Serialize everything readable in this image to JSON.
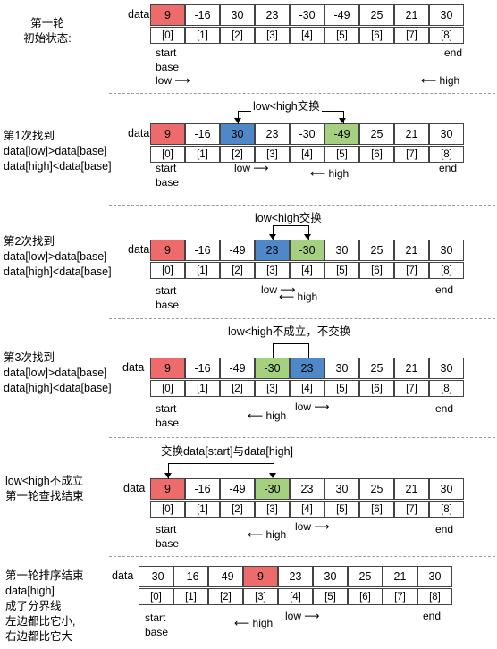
{
  "steps": [
    {
      "side": [
        "第一轮",
        "初始状态:"
      ],
      "data_label": "data",
      "values": [
        "9",
        "-16",
        "30",
        "23",
        "-30",
        "-49",
        "25",
        "21",
        "30"
      ],
      "colors": [
        "red",
        "",
        "",
        "",
        "",
        "",
        "",
        "",
        ""
      ],
      "indices": [
        "[0]",
        "[1]",
        "[2]",
        "[3]",
        "[4]",
        "[5]",
        "[6]",
        "[7]",
        "[8]"
      ],
      "swap_text": "",
      "notes": [
        "start",
        "base",
        "low",
        "end",
        "high"
      ]
    },
    {
      "side": [
        "第1次找到",
        "data[low]>data[base]",
        "data[high]<data[base]"
      ],
      "data_label": "data",
      "values": [
        "9",
        "-16",
        "30",
        "23",
        "-30",
        "-49",
        "25",
        "21",
        "30"
      ],
      "colors": [
        "red",
        "",
        "blue",
        "",
        "",
        "green",
        "",
        "",
        ""
      ],
      "indices": [
        "[0]",
        "[1]",
        "[2]",
        "[3]",
        "[4]",
        "[5]",
        "[6]",
        "[7]",
        "[8]"
      ],
      "swap_text": "low<high交换",
      "notes": [
        "start",
        "base",
        "low",
        "end",
        "high"
      ]
    },
    {
      "side": [
        "第2次找到",
        "data[low]>data[base]",
        "data[high]<data[base]"
      ],
      "data_label": "data",
      "values": [
        "9",
        "-16",
        "-49",
        "23",
        "-30",
        "30",
        "25",
        "21",
        "30"
      ],
      "colors": [
        "red",
        "",
        "",
        "blue",
        "green",
        "",
        "",
        "",
        ""
      ],
      "indices": [
        "[0]",
        "[1]",
        "[2]",
        "[3]",
        "[4]",
        "[5]",
        "[6]",
        "[7]",
        "[8]"
      ],
      "swap_text": "low<high交换",
      "notes": [
        "start",
        "base",
        "low",
        "end",
        "high"
      ]
    },
    {
      "side": [
        "第3次找到",
        "data[low]>data[base]",
        "data[high]<data[base]"
      ],
      "data_label": "data",
      "values": [
        "9",
        "-16",
        "-49",
        "-30",
        "23",
        "30",
        "25",
        "21",
        "30"
      ],
      "colors": [
        "red",
        "",
        "",
        "green",
        "blue",
        "",
        "",
        "",
        ""
      ],
      "indices": [
        "[0]",
        "[1]",
        "[2]",
        "[3]",
        "[4]",
        "[5]",
        "[6]",
        "[7]",
        "[8]"
      ],
      "swap_text": "low<high不成立，不交换",
      "notes": [
        "start",
        "base",
        "low",
        "end",
        "high"
      ]
    },
    {
      "side": [
        "low<high不成立",
        "第一轮查找结束"
      ],
      "data_label": "data",
      "values": [
        "9",
        "-16",
        "-49",
        "-30",
        "23",
        "30",
        "25",
        "21",
        "30"
      ],
      "colors": [
        "red",
        "",
        "",
        "green",
        "",
        "",
        "",
        "",
        ""
      ],
      "indices": [
        "[0]",
        "[1]",
        "[2]",
        "[3]",
        "[4]",
        "[5]",
        "[6]",
        "[7]",
        "[8]"
      ],
      "swap_text": "交换data[start]与data[high]",
      "notes": [
        "start",
        "base",
        "low",
        "end",
        "high"
      ]
    },
    {
      "side": [
        "第一轮排序结束",
        "data[high]",
        "成了分界线",
        "左边都比它小,",
        "右边都比它大"
      ],
      "data_label": "data",
      "values": [
        "-30",
        "-16",
        "-49",
        "9",
        "23",
        "30",
        "25",
        "21",
        "30"
      ],
      "colors": [
        "",
        "",
        "",
        "red",
        "",
        "",
        "",
        "",
        ""
      ],
      "indices": [
        "[0]",
        "[1]",
        "[2]",
        "[3]",
        "[4]",
        "[5]",
        "[6]",
        "[7]",
        "[8]"
      ],
      "swap_text": "",
      "notes": [
        "start",
        "base",
        "low",
        "end",
        "high"
      ]
    }
  ]
}
